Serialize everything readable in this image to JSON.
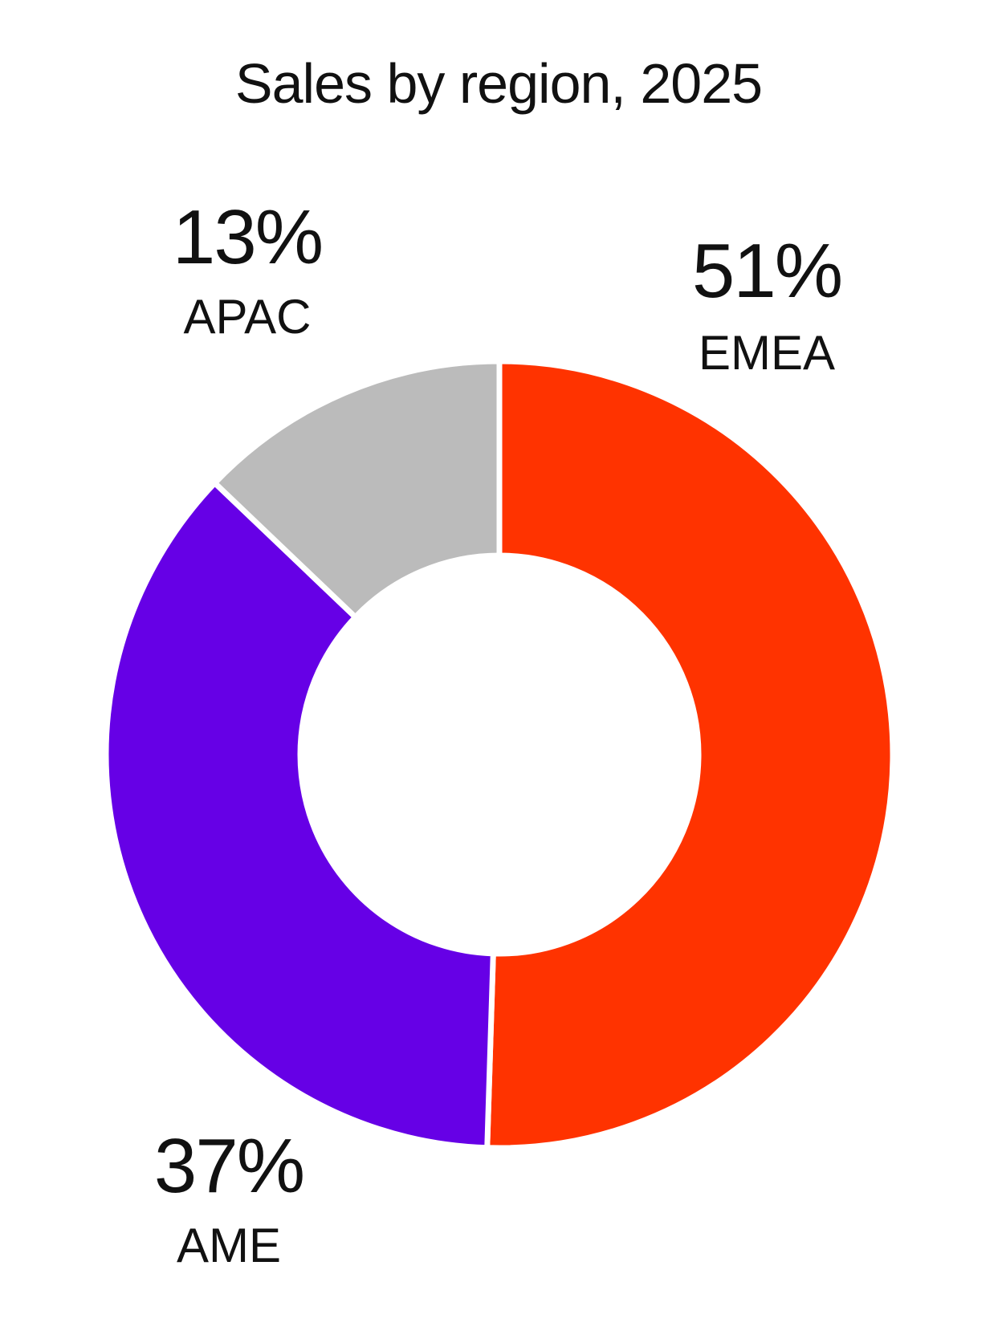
{
  "chart_data": {
    "type": "pie",
    "title": "Sales by region, 2025",
    "donut": true,
    "start_angle_deg": 0,
    "direction": "clockwise",
    "slices": [
      {
        "label": "EMEA",
        "value": 51,
        "value_label": "51%",
        "color": "#FF3300"
      },
      {
        "label": "AME",
        "value": 37,
        "value_label": "37%",
        "color": "#6600E6"
      },
      {
        "label": "APAC",
        "value": 13,
        "value_label": "13%",
        "color": "#BBBBBB"
      }
    ],
    "legend": "none",
    "grid": false
  }
}
